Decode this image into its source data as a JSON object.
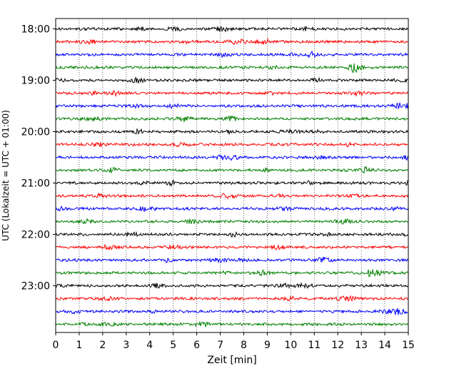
{
  "chart_data": {
    "type": "line",
    "title": "",
    "xlabel": "Zeit  [min]",
    "ylabel": "UTC (Lokalzeit = UTC + 01:00)",
    "xlim": [
      0,
      15
    ],
    "x_ticks": [
      "0",
      "1",
      "2",
      "3",
      "4",
      "5",
      "6",
      "7",
      "8",
      "9",
      "10",
      "11",
      "12",
      "13",
      "14",
      "15"
    ],
    "y_ticks": [
      "18:00",
      "19:00",
      "20:00",
      "21:00",
      "22:00",
      "23:00"
    ],
    "grid": "vertical dotted",
    "trace_interval_min": 15,
    "trace_colors": [
      "#000000",
      "#ff0000",
      "#0000ff",
      "#008000"
    ],
    "trace_start_times": [
      "18:00",
      "18:15",
      "18:30",
      "18:45",
      "19:00",
      "19:15",
      "19:30",
      "19:45",
      "20:00",
      "20:15",
      "20:30",
      "20:45",
      "21:00",
      "21:15",
      "21:30",
      "21:45",
      "22:00",
      "22:15",
      "22:30",
      "22:45",
      "23:00",
      "23:15",
      "23:30",
      "23:45"
    ]
  }
}
